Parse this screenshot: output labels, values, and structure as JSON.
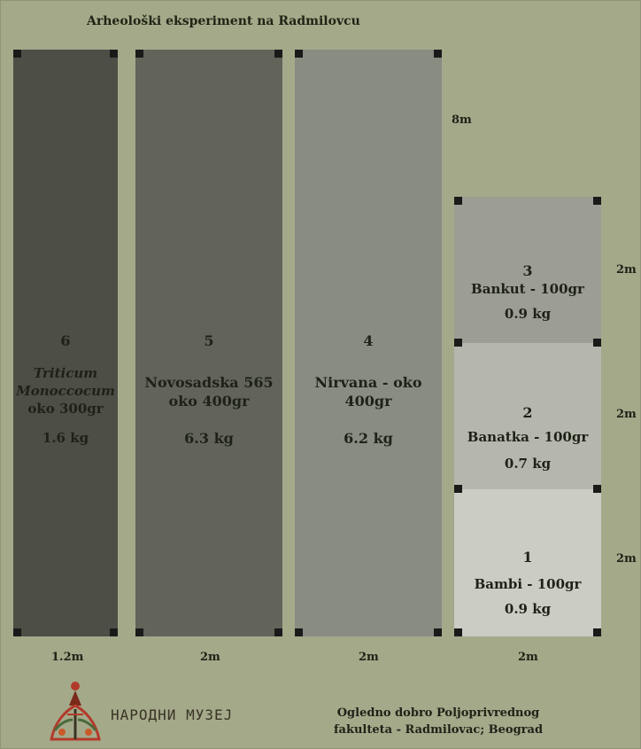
{
  "title": "Arheološki eksperiment na Radmilovcu",
  "plots": [
    {
      "number": "6",
      "name_line1": "Triticum",
      "name_line2": "Monoccocum",
      "name_line3": "oko 300gr",
      "weight": "1.6 kg",
      "color": "#4d4e45"
    },
    {
      "number": "5",
      "name_line1": "Novosadska 565",
      "name_line2": "oko 400gr",
      "weight": "6.3 kg",
      "color": "#62645a"
    },
    {
      "number": "4",
      "name_line1": "Nirvana - oko",
      "name_line2": "400gr",
      "weight": "6.2 kg",
      "color": "#898c81"
    },
    {
      "number": "3",
      "name": "Bankut - 100gr",
      "weight": "0.9 kg",
      "color": "#9c9e94"
    },
    {
      "number": "2",
      "name": "Banatka - 100gr",
      "weight": "0.7 kg",
      "color": "#b5b7ad"
    },
    {
      "number": "1",
      "name": "Bambi - 100gr",
      "weight": "0.9 kg",
      "color": "#cbccc3"
    }
  ],
  "dimensions": {
    "height_tall": "8m",
    "height_small": [
      "2m",
      "2m",
      "2m"
    ],
    "widths": [
      "1.2m",
      "2m",
      "2m",
      "2m"
    ]
  },
  "logo": {
    "text": "НАРОДНИ МУЗЕЈ",
    "icon": "folk-ornament-icon"
  },
  "footer": {
    "line1": "Ogledno dobro Poljoprivrednog",
    "line2": "fakulteta - Radmilovac; Beograd"
  }
}
